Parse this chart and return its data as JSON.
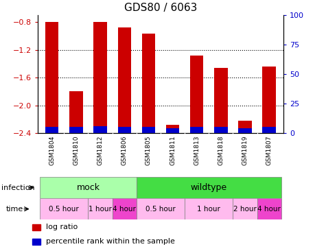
{
  "title": "GDS80 / 6063",
  "samples": [
    "GSM1804",
    "GSM1810",
    "GSM1812",
    "GSM1806",
    "GSM1805",
    "GSM1811",
    "GSM1813",
    "GSM1818",
    "GSM1819",
    "GSM1807"
  ],
  "log_ratio": [
    -0.8,
    -1.8,
    -0.8,
    -0.88,
    -0.97,
    -2.28,
    -1.28,
    -1.46,
    -2.22,
    -1.44
  ],
  "percentile": [
    5,
    5,
    6,
    5,
    5,
    4,
    5,
    5,
    4,
    5
  ],
  "ylim_left": [
    -2.4,
    -0.7
  ],
  "ylim_right": [
    0,
    100
  ],
  "yticks_left": [
    -2.4,
    -2.0,
    -1.6,
    -1.2,
    -0.8
  ],
  "yticks_right": [
    0,
    25,
    50,
    75,
    100
  ],
  "dotted_lines": [
    -1.2,
    -1.6,
    -2.0
  ],
  "bar_color": "#cc0000",
  "percentile_color": "#0000cc",
  "bar_width": 0.55,
  "infection_labels": [
    {
      "label": "mock",
      "start": 0,
      "end": 3,
      "color": "#aaffaa"
    },
    {
      "label": "wildtype",
      "start": 4,
      "end": 9,
      "color": "#44dd44"
    }
  ],
  "time_labels": [
    {
      "label": "0.5 hour",
      "start": 0,
      "end": 1,
      "color": "#ffbbee"
    },
    {
      "label": "1 hour",
      "start": 2,
      "end": 2,
      "color": "#ffbbee"
    },
    {
      "label": "4 hour",
      "start": 3,
      "end": 3,
      "color": "#ee44cc"
    },
    {
      "label": "0.5 hour",
      "start": 4,
      "end": 5,
      "color": "#ffbbee"
    },
    {
      "label": "1 hour",
      "start": 6,
      "end": 7,
      "color": "#ffbbee"
    },
    {
      "label": "2 hour",
      "start": 8,
      "end": 8,
      "color": "#ffbbee"
    },
    {
      "label": "4 hour",
      "start": 9,
      "end": 9,
      "color": "#ee44cc"
    }
  ],
  "left_axis_color": "#cc0000",
  "right_axis_color": "#0000cc",
  "bg_color": "#ffffff",
  "tick_area_color": "#cccccc",
  "legend_items": [
    {
      "color": "#cc0000",
      "label": "log ratio"
    },
    {
      "color": "#0000cc",
      "label": "percentile rank within the sample"
    }
  ]
}
